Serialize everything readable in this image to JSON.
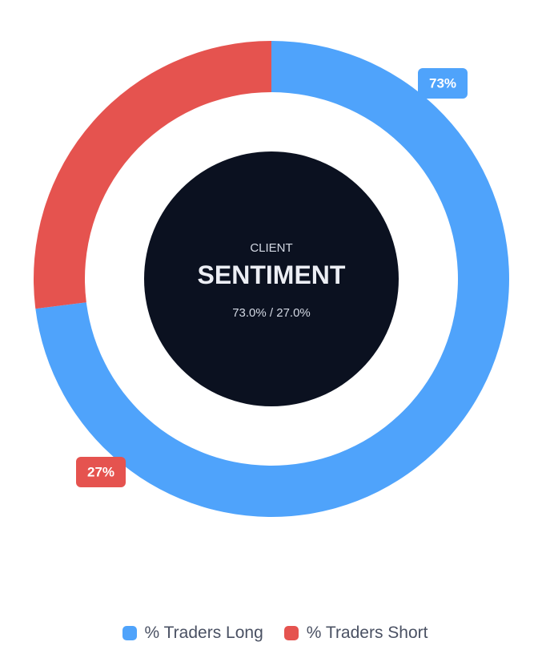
{
  "chart_data": {
    "type": "pie",
    "variant": "doughnut",
    "title": "SENTIMENT",
    "subtitle": "CLIENT",
    "summary_text": "73.0% / 27.0%",
    "categories": [
      "% Traders Long",
      "% Traders Short"
    ],
    "values": [
      73,
      27
    ],
    "data_labels": [
      "73%",
      "27%"
    ],
    "colors": [
      "#4fa3fb",
      "#e5534f"
    ],
    "center_color": "#0b1120",
    "legend_position": "bottom"
  }
}
